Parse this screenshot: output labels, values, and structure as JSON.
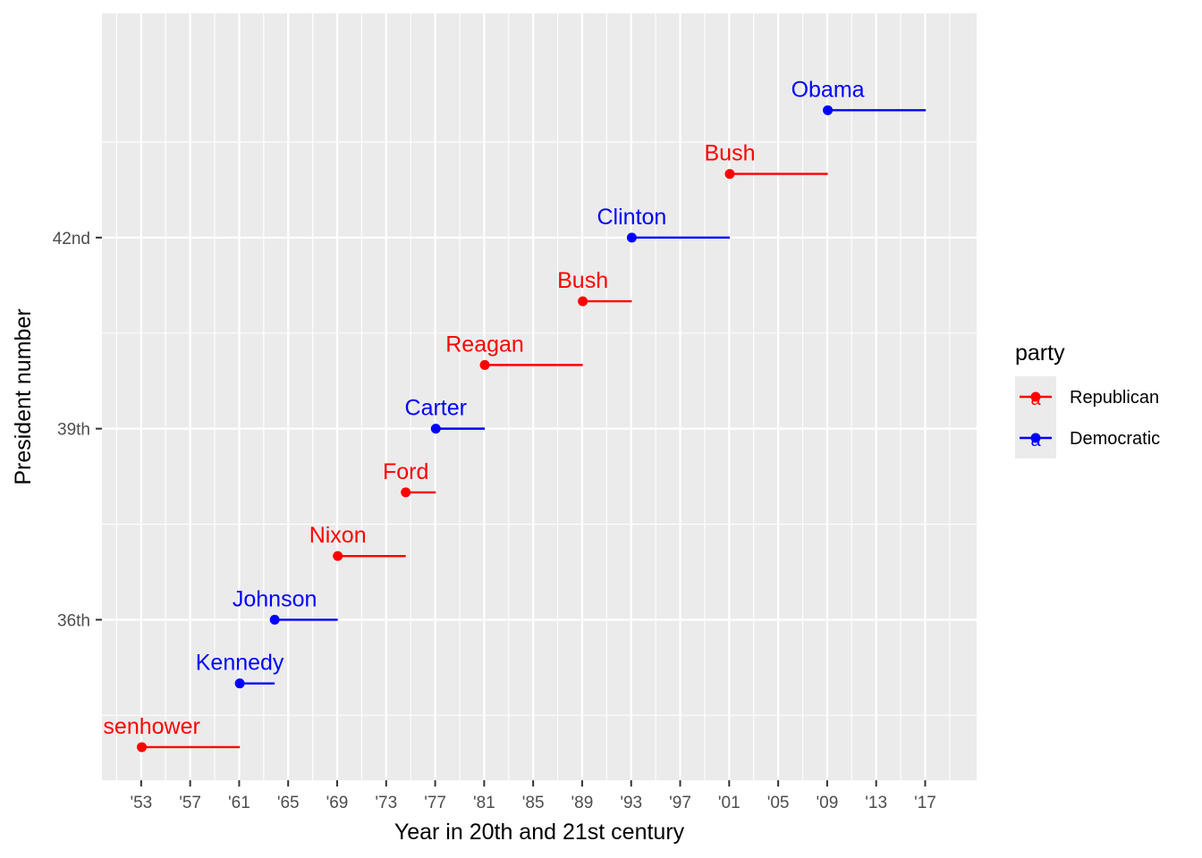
{
  "chart_data": {
    "type": "segment-dot",
    "xlabel": "Year in 20th and 21st century",
    "ylabel": "President number",
    "xlim": [
      1949.8,
      2021.2
    ],
    "ylim": [
      33.48,
      45.52
    ],
    "x_ticks": [
      1953,
      1957,
      1961,
      1965,
      1969,
      1973,
      1977,
      1981,
      1985,
      1989,
      1993,
      1997,
      2001,
      2005,
      2009,
      2013,
      2017
    ],
    "x_tick_labels": [
      "'53",
      "'57",
      "'61",
      "'65",
      "'69",
      "'73",
      "'77",
      "'81",
      "'85",
      "'89",
      "'93",
      "'97",
      "'01",
      "'05",
      "'09",
      "'13",
      "'17"
    ],
    "y_ticks": [
      36,
      39,
      42
    ],
    "y_tick_labels": [
      "36th",
      "39th",
      "42nd"
    ],
    "grid": true,
    "legend": {
      "title": "party",
      "position": "right",
      "entries": [
        {
          "name": "Republican",
          "color": "#ff0000"
        },
        {
          "name": "Democratic",
          "color": "#0000ff"
        }
      ]
    },
    "presidents": [
      {
        "name": "Eisenhower",
        "number": 34,
        "start": 1953.05,
        "end": 1961.05,
        "party": "Republican"
      },
      {
        "name": "Kennedy",
        "number": 35,
        "start": 1961.05,
        "end": 1963.9,
        "party": "Democratic"
      },
      {
        "name": "Johnson",
        "number": 36,
        "start": 1963.9,
        "end": 1969.05,
        "party": "Democratic"
      },
      {
        "name": "Nixon",
        "number": 37,
        "start": 1969.05,
        "end": 1974.6,
        "party": "Republican"
      },
      {
        "name": "Ford",
        "number": 38,
        "start": 1974.6,
        "end": 1977.05,
        "party": "Republican"
      },
      {
        "name": "Carter",
        "number": 39,
        "start": 1977.05,
        "end": 1981.05,
        "party": "Democratic"
      },
      {
        "name": "Reagan",
        "number": 40,
        "start": 1981.05,
        "end": 1989.05,
        "party": "Republican"
      },
      {
        "name": "Bush",
        "number": 41,
        "start": 1989.05,
        "end": 1993.05,
        "party": "Republican"
      },
      {
        "name": "Clinton",
        "number": 42,
        "start": 1993.05,
        "end": 2001.05,
        "party": "Democratic"
      },
      {
        "name": "Bush",
        "number": 43,
        "start": 2001.05,
        "end": 2009.05,
        "party": "Republican"
      },
      {
        "name": "Obama",
        "number": 44,
        "start": 2009.05,
        "end": 2017.05,
        "party": "Democratic"
      }
    ]
  }
}
